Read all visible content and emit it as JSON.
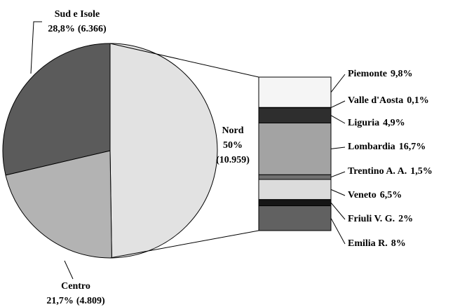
{
  "chart_data": {
    "type": "pie",
    "categories": [
      "Nord",
      "Centro",
      "Sud e Isole"
    ],
    "values": [
      50,
      21.7,
      28.8
    ],
    "value_labels": [
      "50%",
      "21,7%",
      "28,8%"
    ],
    "counts": [
      10959,
      4809,
      6366
    ],
    "count_labels": [
      "(10.959)",
      "(4.809)",
      "(6.366)"
    ],
    "colors": [
      "#e2e2e2",
      "#b3b3b3",
      "#5b5b5b"
    ],
    "breakdown": {
      "categories": [
        "Piemonte",
        "Valle d'Aosta",
        "Liguria",
        "Lombardia",
        "Trentino A. A.",
        "Veneto",
        "Friuli V. G.",
        "Emilia R."
      ],
      "values": [
        9.8,
        0.1,
        4.9,
        16.7,
        1.5,
        6.5,
        2,
        8
      ],
      "value_labels": [
        "9,8%",
        "0,1%",
        "4,9%",
        "16,7%",
        "1,5%",
        "6,5%",
        "2%",
        "8%"
      ],
      "colors": [
        "#f5f5f5",
        "#ffffff",
        "#2e2e2e",
        "#a3a3a3",
        "#707070",
        "#dcdcdc",
        "#151515",
        "#616161"
      ]
    }
  }
}
